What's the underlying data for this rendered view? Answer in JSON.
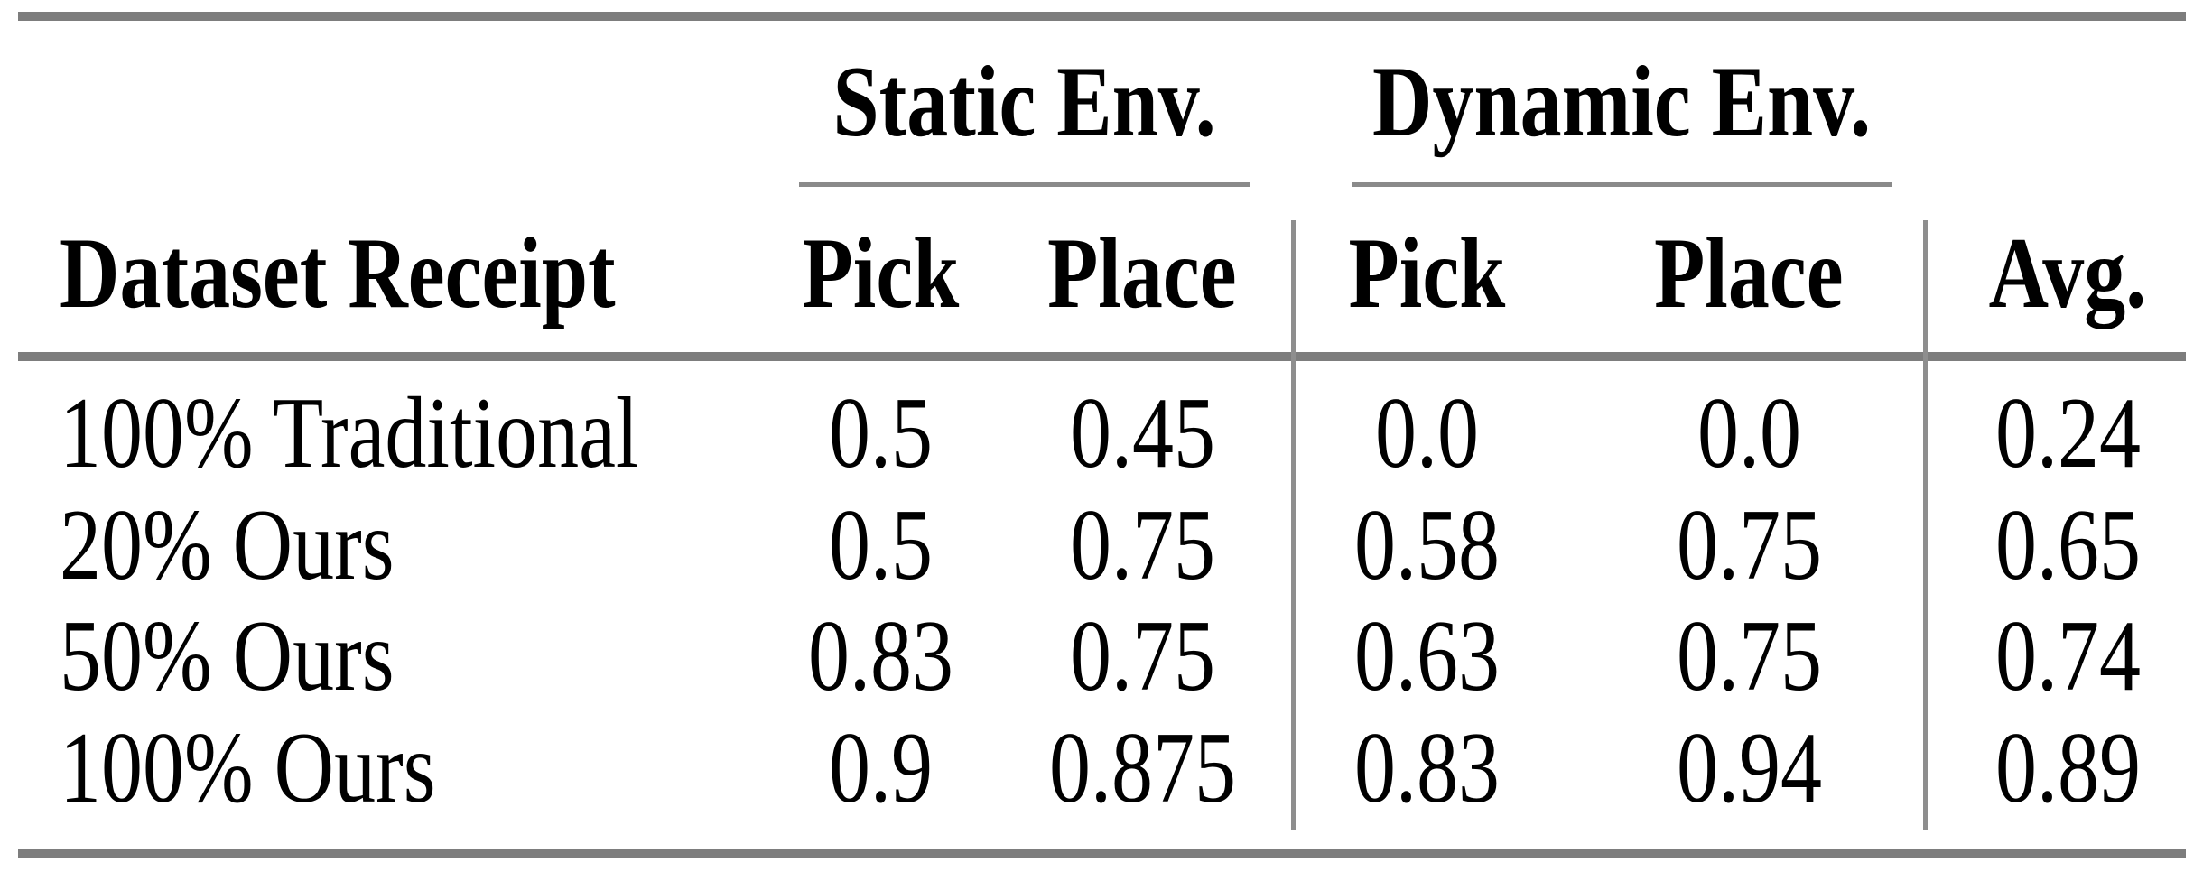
{
  "table": {
    "group_headers": {
      "static": "Static Env.",
      "dynamic": "Dynamic Env."
    },
    "column_headers": {
      "label": "Dataset Receipt",
      "static_pick": "Pick",
      "static_place": "Place",
      "dynamic_pick": "Pick",
      "dynamic_place": "Place",
      "avg": "Avg."
    },
    "rows": [
      {
        "label": "100% Traditional",
        "static_pick": "0.5",
        "static_place": "0.45",
        "dynamic_pick": "0.0",
        "dynamic_place": "0.0",
        "avg": "0.24"
      },
      {
        "label": "20% Ours",
        "static_pick": "0.5",
        "static_place": "0.75",
        "dynamic_pick": "0.58",
        "dynamic_place": "0.75",
        "avg": "0.65"
      },
      {
        "label": "50% Ours",
        "static_pick": "0.83",
        "static_place": "0.75",
        "dynamic_pick": "0.63",
        "dynamic_place": "0.75",
        "avg": "0.74"
      },
      {
        "label": "100% Ours",
        "static_pick": "0.9",
        "static_place": "0.875",
        "dynamic_pick": "0.83",
        "dynamic_place": "0.94",
        "avg": "0.89"
      }
    ],
    "colors": {
      "rule_gray": "#7d7d7d",
      "separator_gray": "#8e8e8e",
      "text": "#000000",
      "background": "#ffffff"
    }
  },
  "chart_data": {
    "type": "table",
    "columns": [
      "Dataset Receipt",
      "Static Env. Pick",
      "Static Env. Place",
      "Dynamic Env. Pick",
      "Dynamic Env. Place",
      "Avg."
    ],
    "rows": [
      [
        "100% Traditional",
        0.5,
        0.45,
        0.0,
        0.0,
        0.24
      ],
      [
        "20% Ours",
        0.5,
        0.75,
        0.58,
        0.75,
        0.65
      ],
      [
        "50% Ours",
        0.83,
        0.75,
        0.63,
        0.75,
        0.74
      ],
      [
        "100% Ours",
        0.9,
        0.875,
        0.83,
        0.94,
        0.89
      ]
    ]
  }
}
